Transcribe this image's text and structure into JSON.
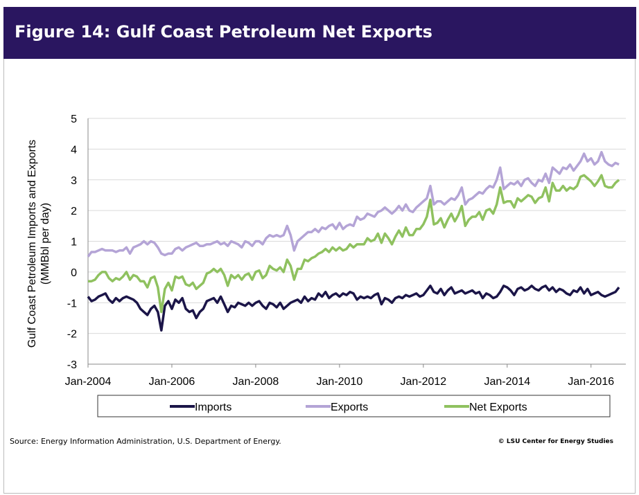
{
  "chart_data": {
    "type": "line",
    "title": "Figure 14: Gulf Coast Petroleum Net Exports",
    "y_label": [
      "Gulf Coast Petroleum Imports and Exports",
      "(MMBbl per day)"
    ],
    "source": "Source:  Energy Information Administration, U.S. Department of Energy.",
    "credit": "© LSU Center for Energy Studies",
    "grid": true,
    "legend": "bottom",
    "ylim": [
      -3,
      5
    ],
    "yticks": [
      -3,
      -2,
      -1,
      0,
      1,
      2,
      3,
      4,
      5
    ],
    "xticks": [
      {
        "value": "2004-01",
        "label": "Jan-2004"
      },
      {
        "value": "2006-01",
        "label": "Jan-2006"
      },
      {
        "value": "2008-01",
        "label": "Jan-2008"
      },
      {
        "value": "2010-01",
        "label": "Jan-2010"
      },
      {
        "value": "2012-01",
        "label": "Jan-2012"
      },
      {
        "value": "2014-01",
        "label": "Jan-2014"
      },
      {
        "value": "2016-01",
        "label": "Jan-2016"
      }
    ],
    "x": [
      "2004-01",
      "2004-02",
      "2004-03",
      "2004-04",
      "2004-05",
      "2004-06",
      "2004-07",
      "2004-08",
      "2004-09",
      "2004-10",
      "2004-11",
      "2004-12",
      "2005-01",
      "2005-02",
      "2005-03",
      "2005-04",
      "2005-05",
      "2005-06",
      "2005-07",
      "2005-08",
      "2005-09",
      "2005-10",
      "2005-11",
      "2005-12",
      "2006-01",
      "2006-02",
      "2006-03",
      "2006-04",
      "2006-05",
      "2006-06",
      "2006-07",
      "2006-08",
      "2006-09",
      "2006-10",
      "2006-11",
      "2006-12",
      "2007-01",
      "2007-02",
      "2007-03",
      "2007-04",
      "2007-05",
      "2007-06",
      "2007-07",
      "2007-08",
      "2007-09",
      "2007-10",
      "2007-11",
      "2007-12",
      "2008-01",
      "2008-02",
      "2008-03",
      "2008-04",
      "2008-05",
      "2008-06",
      "2008-07",
      "2008-08",
      "2008-09",
      "2008-10",
      "2008-11",
      "2008-12",
      "2009-01",
      "2009-02",
      "2009-03",
      "2009-04",
      "2009-05",
      "2009-06",
      "2009-07",
      "2009-08",
      "2009-09",
      "2009-10",
      "2009-11",
      "2009-12",
      "2010-01",
      "2010-02",
      "2010-03",
      "2010-04",
      "2010-05",
      "2010-06",
      "2010-07",
      "2010-08",
      "2010-09",
      "2010-10",
      "2010-11",
      "2010-12",
      "2011-01",
      "2011-02",
      "2011-03",
      "2011-04",
      "2011-05",
      "2011-06",
      "2011-07",
      "2011-08",
      "2011-09",
      "2011-10",
      "2011-11",
      "2011-12",
      "2012-01",
      "2012-02",
      "2012-03",
      "2012-04",
      "2012-05",
      "2012-06",
      "2012-07",
      "2012-08",
      "2012-09",
      "2012-10",
      "2012-11",
      "2012-12",
      "2013-01",
      "2013-02",
      "2013-03",
      "2013-04",
      "2013-05",
      "2013-06",
      "2013-07",
      "2013-08",
      "2013-09",
      "2013-10",
      "2013-11",
      "2013-12",
      "2014-01",
      "2014-02",
      "2014-03",
      "2014-04",
      "2014-05",
      "2014-06",
      "2014-07",
      "2014-08",
      "2014-09",
      "2014-10",
      "2014-11",
      "2014-12",
      "2015-01",
      "2015-02",
      "2015-03",
      "2015-04",
      "2015-05",
      "2015-06",
      "2015-07",
      "2015-08",
      "2015-09",
      "2015-10",
      "2015-11",
      "2015-12",
      "2016-01",
      "2016-02",
      "2016-03",
      "2016-04",
      "2016-05",
      "2016-06",
      "2016-07",
      "2016-08",
      "2016-09"
    ],
    "series": [
      {
        "name": "Imports",
        "color": "#1b1548",
        "values": [
          -0.8,
          -0.95,
          -0.9,
          -0.8,
          -0.75,
          -0.7,
          -0.9,
          -1.0,
          -0.85,
          -0.95,
          -0.85,
          -0.8,
          -0.85,
          -0.9,
          -1.0,
          -1.2,
          -1.3,
          -1.4,
          -1.2,
          -1.1,
          -1.3,
          -1.9,
          -1.1,
          -0.95,
          -1.2,
          -0.9,
          -1.0,
          -0.85,
          -1.2,
          -1.3,
          -1.25,
          -1.5,
          -1.3,
          -1.2,
          -0.95,
          -0.9,
          -0.85,
          -1.0,
          -0.8,
          -1.05,
          -1.3,
          -1.1,
          -1.15,
          -1.0,
          -1.05,
          -1.1,
          -1.0,
          -1.1,
          -1.0,
          -0.95,
          -1.1,
          -1.2,
          -1.0,
          -1.05,
          -1.15,
          -1.0,
          -1.2,
          -1.1,
          -1.0,
          -0.95,
          -0.9,
          -1.0,
          -0.8,
          -0.95,
          -0.85,
          -0.9,
          -0.7,
          -0.8,
          -0.65,
          -0.85,
          -0.75,
          -0.7,
          -0.8,
          -0.7,
          -0.75,
          -0.65,
          -0.7,
          -0.9,
          -0.8,
          -0.85,
          -0.8,
          -0.85,
          -0.75,
          -0.7,
          -1.05,
          -0.85,
          -0.9,
          -1.0,
          -0.85,
          -0.8,
          -0.85,
          -0.75,
          -0.8,
          -0.75,
          -0.7,
          -0.8,
          -0.75,
          -0.6,
          -0.45,
          -0.65,
          -0.7,
          -0.55,
          -0.75,
          -0.6,
          -0.5,
          -0.7,
          -0.65,
          -0.6,
          -0.7,
          -0.65,
          -0.6,
          -0.7,
          -0.65,
          -0.85,
          -0.7,
          -0.75,
          -0.85,
          -0.8,
          -0.65,
          -0.45,
          -0.5,
          -0.6,
          -0.75,
          -0.55,
          -0.5,
          -0.6,
          -0.55,
          -0.45,
          -0.55,
          -0.6,
          -0.5,
          -0.45,
          -0.6,
          -0.5,
          -0.65,
          -0.55,
          -0.6,
          -0.7,
          -0.75,
          -0.6,
          -0.65,
          -0.5,
          -0.7,
          -0.55,
          -0.75,
          -0.7,
          -0.65,
          -0.75,
          -0.8,
          -0.75,
          -0.7,
          -0.65,
          -0.5
        ]
      },
      {
        "name": "Exports",
        "color": "#b4a4d6",
        "values": [
          0.5,
          0.65,
          0.65,
          0.7,
          0.75,
          0.7,
          0.7,
          0.7,
          0.65,
          0.7,
          0.7,
          0.8,
          0.6,
          0.8,
          0.85,
          0.9,
          1.0,
          0.9,
          1.0,
          0.95,
          0.8,
          0.6,
          0.55,
          0.6,
          0.6,
          0.75,
          0.8,
          0.7,
          0.8,
          0.85,
          0.9,
          0.95,
          0.85,
          0.85,
          0.9,
          0.9,
          0.95,
          1.0,
          0.9,
          0.95,
          0.85,
          1.0,
          0.95,
          0.9,
          0.8,
          1.0,
          0.95,
          0.85,
          1.0,
          1.0,
          0.9,
          1.1,
          1.2,
          1.15,
          1.2,
          1.15,
          1.2,
          1.5,
          1.2,
          0.7,
          1.0,
          1.1,
          1.2,
          1.3,
          1.3,
          1.4,
          1.3,
          1.45,
          1.4,
          1.5,
          1.55,
          1.4,
          1.6,
          1.4,
          1.5,
          1.55,
          1.5,
          1.8,
          1.7,
          1.75,
          1.9,
          1.85,
          1.8,
          1.95,
          2.0,
          2.1,
          2.0,
          1.9,
          2.0,
          2.15,
          2.0,
          2.2,
          2.0,
          1.95,
          2.1,
          2.2,
          2.3,
          2.4,
          2.8,
          2.2,
          2.3,
          2.3,
          2.2,
          2.3,
          2.4,
          2.35,
          2.5,
          2.75,
          2.2,
          2.35,
          2.4,
          2.5,
          2.6,
          2.55,
          2.7,
          2.8,
          2.75,
          3.0,
          3.4,
          2.7,
          2.8,
          2.9,
          2.85,
          2.95,
          2.8,
          3.0,
          3.05,
          2.9,
          2.8,
          3.0,
          2.95,
          3.2,
          2.9,
          3.4,
          3.3,
          3.2,
          3.4,
          3.35,
          3.5,
          3.3,
          3.45,
          3.6,
          3.85,
          3.6,
          3.7,
          3.5,
          3.6,
          3.9,
          3.6,
          3.5,
          3.45,
          3.55,
          3.5
        ]
      },
      {
        "name": "Net Exports",
        "color": "#8fc15f",
        "values": [
          -0.3,
          -0.3,
          -0.25,
          -0.1,
          0,
          0,
          -0.2,
          -0.3,
          -0.2,
          -0.25,
          -0.15,
          0,
          -0.25,
          -0.1,
          -0.15,
          -0.3,
          -0.3,
          -0.5,
          -0.2,
          -0.15,
          -0.5,
          -1.3,
          -0.55,
          -0.35,
          -0.6,
          -0.15,
          -0.2,
          -0.15,
          -0.4,
          -0.45,
          -0.35,
          -0.55,
          -0.45,
          -0.35,
          -0.05,
          0,
          0.1,
          0,
          0.1,
          -0.1,
          -0.45,
          -0.1,
          -0.2,
          -0.1,
          -0.25,
          -0.1,
          -0.05,
          -0.25,
          0,
          0.05,
          -0.2,
          -0.1,
          0.2,
          0.1,
          0.05,
          0.15,
          0,
          0.4,
          0.2,
          -0.25,
          0.1,
          0.1,
          0.4,
          0.35,
          0.45,
          0.5,
          0.6,
          0.65,
          0.75,
          0.65,
          0.8,
          0.7,
          0.8,
          0.7,
          0.75,
          0.9,
          0.8,
          0.9,
          0.9,
          0.9,
          1.1,
          1.0,
          1.05,
          1.25,
          0.95,
          1.25,
          1.1,
          0.9,
          1.15,
          1.35,
          1.15,
          1.45,
          1.2,
          1.2,
          1.4,
          1.4,
          1.55,
          1.8,
          2.35,
          1.55,
          1.6,
          1.75,
          1.45,
          1.7,
          1.9,
          1.65,
          1.85,
          2.15,
          1.5,
          1.7,
          1.8,
          1.8,
          1.95,
          1.7,
          2.0,
          2.05,
          1.9,
          2.2,
          2.75,
          2.25,
          2.3,
          2.3,
          2.1,
          2.4,
          2.3,
          2.4,
          2.5,
          2.45,
          2.25,
          2.4,
          2.45,
          2.75,
          2.3,
          2.9,
          2.65,
          2.65,
          2.8,
          2.65,
          2.75,
          2.7,
          2.8,
          3.1,
          3.15,
          3.05,
          2.95,
          2.8,
          2.95,
          3.15,
          2.8,
          2.75,
          2.75,
          2.9,
          3.0
        ]
      }
    ]
  }
}
